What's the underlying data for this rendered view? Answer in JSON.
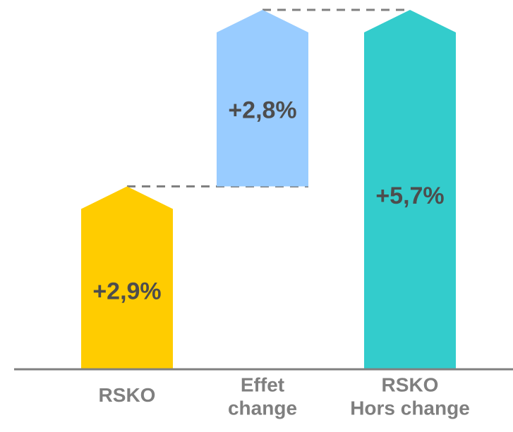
{
  "chart_data": {
    "type": "bar",
    "subtype": "waterfall",
    "categories": [
      [
        "RSKO"
      ],
      [
        "Effet",
        "change"
      ],
      [
        "RSKO",
        "Hors change"
      ]
    ],
    "values": [
      2.9,
      2.8,
      5.7
    ],
    "bases": [
      0,
      2.9,
      0
    ],
    "data_labels": [
      "+2,9%",
      "+2,8%",
      "+5,7%"
    ],
    "ylim": [
      0,
      5.7
    ],
    "grid": false,
    "legend": "none",
    "bar_shape": "arrow-up",
    "colors": [
      "#FFCC00",
      "#99CCFF",
      "#33CCCC"
    ],
    "connector_color": "#808080",
    "axis_color": "#808080",
    "label_color": "#4D4D4D",
    "category_label_color": "#7F7F7F"
  }
}
